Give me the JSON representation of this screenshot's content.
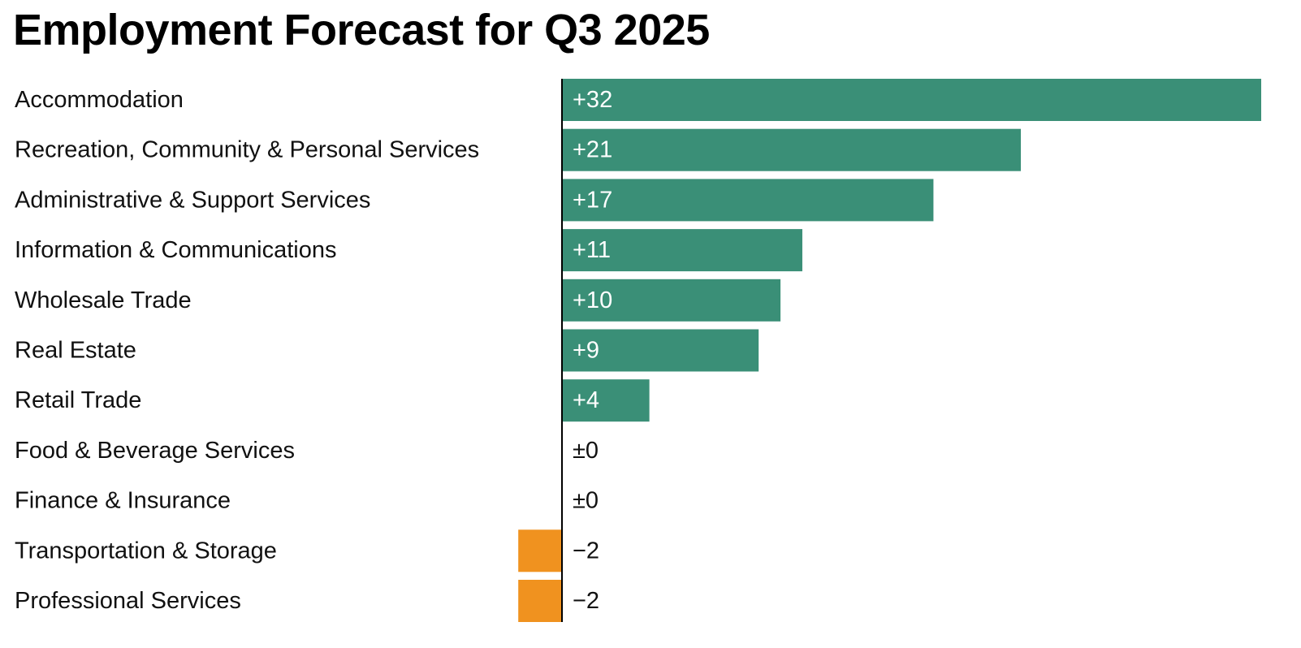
{
  "chart_data": {
    "type": "bar",
    "orientation": "horizontal",
    "title": "Employment Forecast for Q3 2025",
    "categories": [
      "Accommodation",
      "Recreation, Community & Personal Services",
      "Administrative & Support Services",
      "Information & Communications",
      "Wholesale Trade",
      "Real Estate",
      "Retail Trade",
      "Food & Beverage Services",
      "Finance & Insurance",
      "Transportation & Storage",
      "Professional Services"
    ],
    "values": [
      32,
      21,
      17,
      11,
      10,
      9,
      4,
      0,
      0,
      -2,
      -2
    ],
    "value_labels": [
      "+32",
      "+21",
      "+17",
      "+11",
      "+10",
      "+9",
      "+4",
      "±0",
      "±0",
      "−2",
      "−2"
    ],
    "xlim": [
      -2,
      32
    ],
    "grid": false,
    "legend": "none",
    "colors": {
      "positive": "#3a8f77",
      "negative": "#f0921f",
      "label_on_bar": "#ffffff",
      "label_off_bar": "#111111",
      "axis": "#000000"
    }
  }
}
